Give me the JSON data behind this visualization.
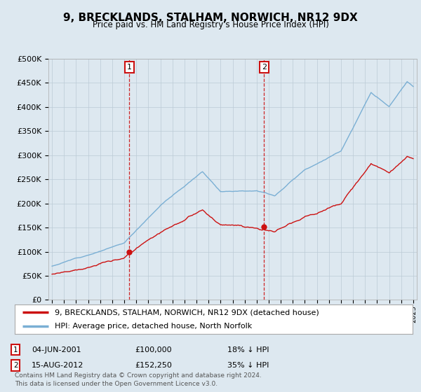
{
  "title": "9, BRECKLANDS, STALHAM, NORWICH, NR12 9DX",
  "subtitle": "Price paid vs. HM Land Registry's House Price Index (HPI)",
  "legend_line1": "9, BRECKLANDS, STALHAM, NORWICH, NR12 9DX (detached house)",
  "legend_line2": "HPI: Average price, detached house, North Norfolk",
  "annotation1_date": "04-JUN-2001",
  "annotation1_price": "£100,000",
  "annotation1_hpi": "18% ↓ HPI",
  "annotation2_date": "15-AUG-2012",
  "annotation2_price": "£152,250",
  "annotation2_hpi": "35% ↓ HPI",
  "footer": "Contains HM Land Registry data © Crown copyright and database right 2024.\nThis data is licensed under the Open Government Licence v3.0.",
  "hpi_color": "#7aafd4",
  "price_color": "#cc1111",
  "annotation_color": "#cc1111",
  "bg_color": "#dde8f0",
  "plot_bg": "#dde8f0",
  "ylim": [
    0,
    500000
  ],
  "yticks": [
    0,
    50000,
    100000,
    150000,
    200000,
    250000,
    300000,
    350000,
    400000,
    450000,
    500000
  ],
  "sale1_year": 2001.42,
  "sale1_price": 100000,
  "sale2_year": 2012.62,
  "sale2_price": 152250,
  "xlim_left": 1994.7,
  "xlim_right": 2025.3
}
